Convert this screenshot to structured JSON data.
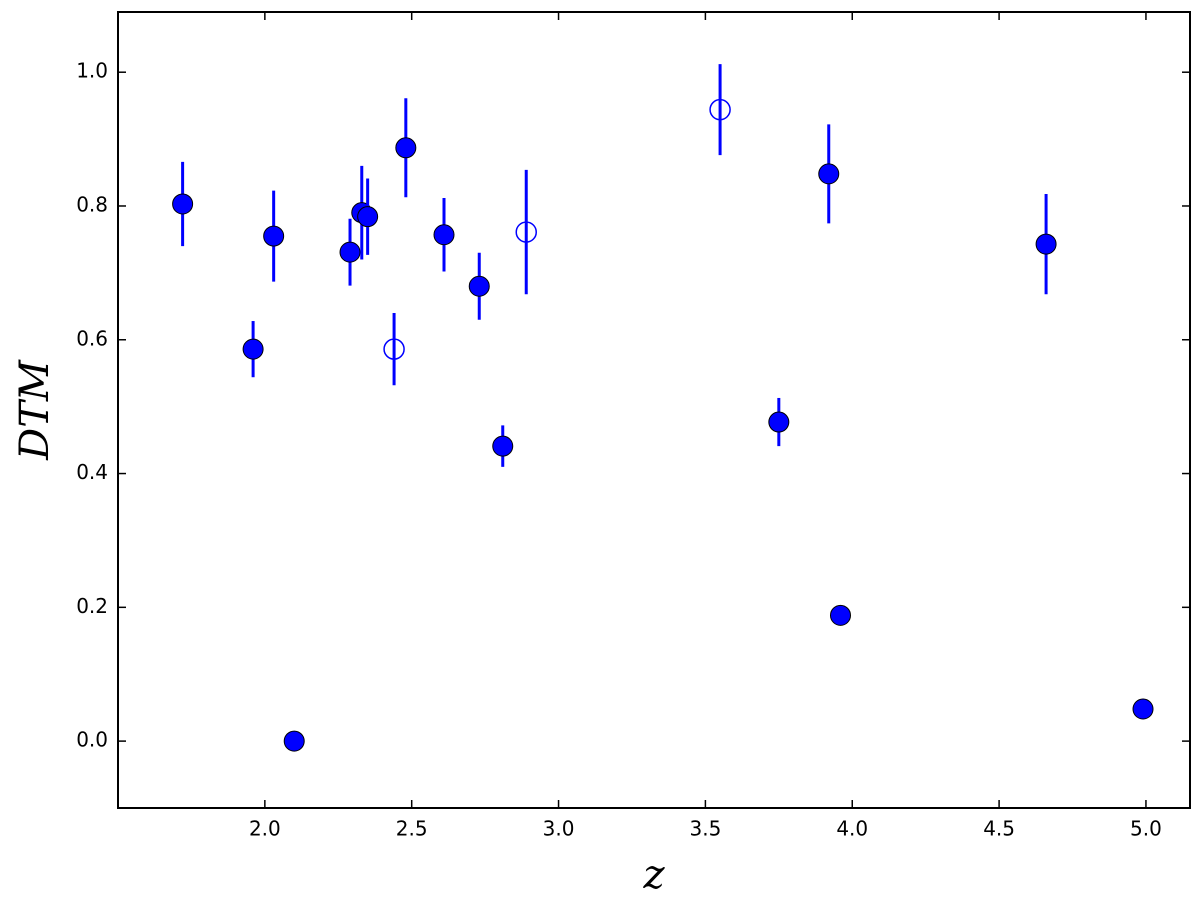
{
  "chart_data": {
    "type": "scatter",
    "x_label": "z",
    "y_label": "DTM",
    "xlim": [
      1.5,
      5.15
    ],
    "ylim": [
      -0.1,
      1.09
    ],
    "xticks": [
      {
        "value": 2,
        "label": "2.0"
      },
      2.5,
      {
        "value": 3,
        "label": "3.0"
      },
      3.5,
      {
        "value": 4,
        "label": "4.0"
      },
      4.5,
      {
        "value": 5,
        "label": "5.0"
      }
    ],
    "yticks": [
      {
        "value": 0,
        "label": "0.0"
      },
      0.2,
      0.4,
      0.6,
      0.8,
      {
        "value": 1,
        "label": "1.0"
      }
    ],
    "series": [
      {
        "color": "#0000ff",
        "filled": true,
        "x": [
          1.72,
          1.96,
          2.03,
          2.1,
          2.29,
          2.33,
          2.35,
          2.48,
          2.61,
          2.73,
          2.81,
          3.75,
          3.92,
          3.96,
          4.66,
          4.99
        ],
        "values": [
          0.803,
          0.586,
          0.755,
          0.0,
          0.731,
          0.79,
          0.784,
          0.887,
          0.757,
          0.68,
          0.441,
          0.477,
          0.848,
          0.188,
          0.743,
          0.048
        ],
        "errors": [
          0.063,
          0.042,
          0.068,
          null,
          0.05,
          0.07,
          0.057,
          0.074,
          0.055,
          0.05,
          0.031,
          0.036,
          0.074,
          null,
          0.075,
          null
        ]
      },
      {
        "color": "#0000ff",
        "filled": false,
        "x": [
          2.44,
          2.89,
          3.55
        ],
        "values": [
          0.586,
          0.761,
          0.944
        ],
        "errors": [
          0.054,
          0.093,
          0.068
        ]
      }
    ]
  }
}
